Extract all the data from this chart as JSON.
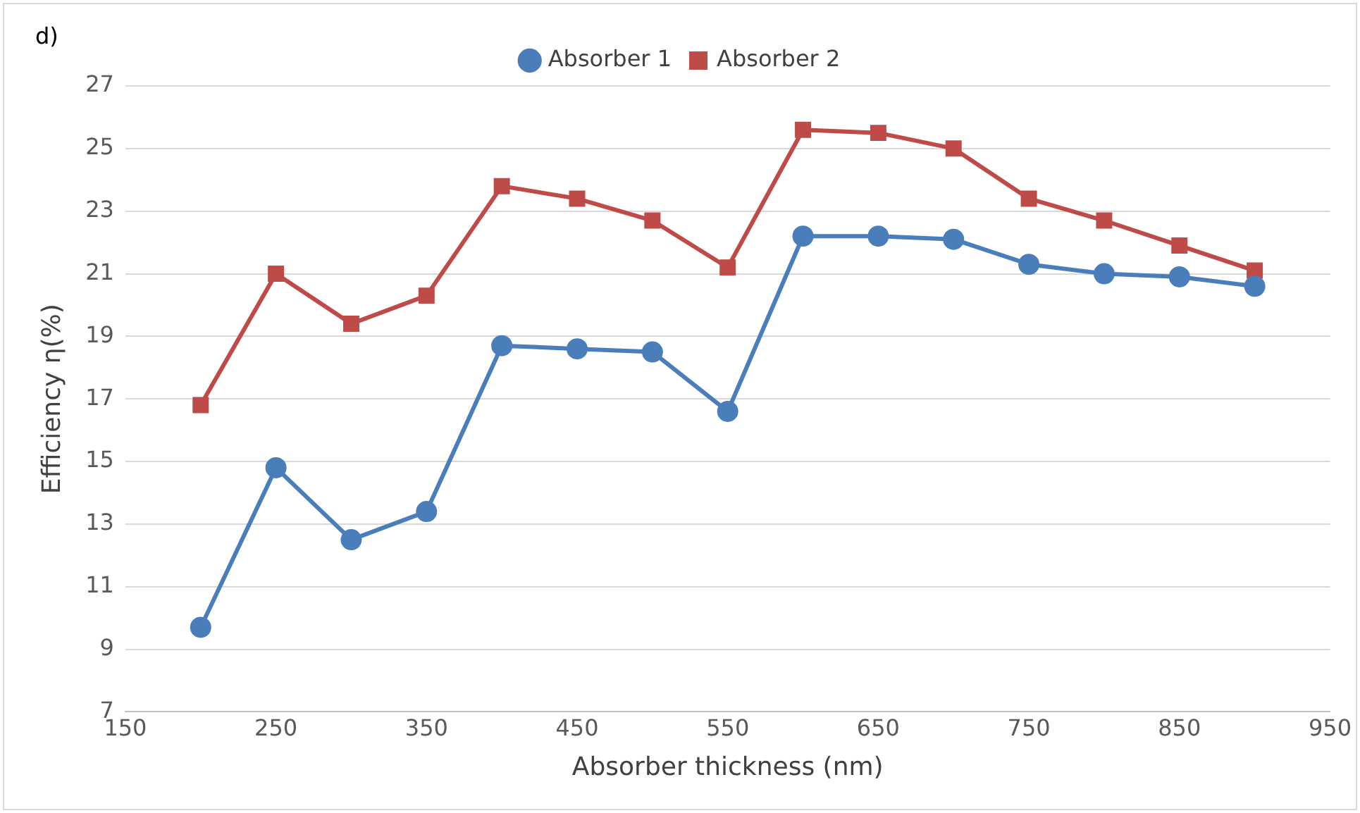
{
  "chart_data": {
    "type": "line",
    "xlabel": "Absorber thickness (nm)",
    "ylabel": "Efficiency η(%)",
    "annotations": [
      "d)"
    ],
    "x": [
      200,
      250,
      300,
      350,
      400,
      450,
      500,
      550,
      600,
      650,
      700,
      750,
      800,
      850,
      900
    ],
    "series": [
      {
        "name": "Absorber 1",
        "color": "#4a7ebb",
        "marker": "circle",
        "values": [
          9.7,
          14.8,
          12.5,
          13.4,
          18.7,
          18.6,
          18.5,
          16.6,
          22.2,
          22.2,
          22.1,
          21.3,
          21.0,
          20.9,
          20.6
        ]
      },
      {
        "name": "Absorber 2",
        "color": "#be4b48",
        "marker": "square",
        "values": [
          16.8,
          21.0,
          19.4,
          20.3,
          23.8,
          23.4,
          22.7,
          21.2,
          25.6,
          25.5,
          25.0,
          23.4,
          22.7,
          21.9,
          21.1
        ]
      }
    ],
    "xlim": [
      150,
      950
    ],
    "xticks": [
      150,
      250,
      350,
      450,
      550,
      650,
      750,
      850,
      950
    ],
    "ylim": [
      7,
      27
    ],
    "yticks": [
      7,
      9,
      11,
      13,
      15,
      17,
      19,
      21,
      23,
      25,
      27
    ],
    "grid": "y",
    "legend": "top",
    "line_style": "solid"
  }
}
